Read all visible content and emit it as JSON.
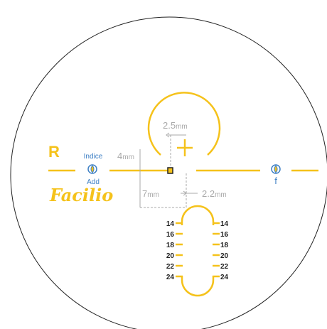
{
  "eye": "R",
  "left_icon": {
    "top": "Indice",
    "bottom": "Add"
  },
  "brand": "Facilio",
  "right_icon": {
    "bottom": "f"
  },
  "dimensions": [
    {
      "value": "4",
      "unit": "mm"
    },
    {
      "value": "2.5",
      "unit": "mm"
    },
    {
      "value": "7",
      "unit": "mm"
    },
    {
      "value": "2.2",
      "unit": "mm"
    }
  ],
  "scale": {
    "left": [
      14,
      16,
      18,
      20,
      22,
      24
    ],
    "right": [
      14,
      16,
      18,
      20,
      22,
      24
    ]
  }
}
